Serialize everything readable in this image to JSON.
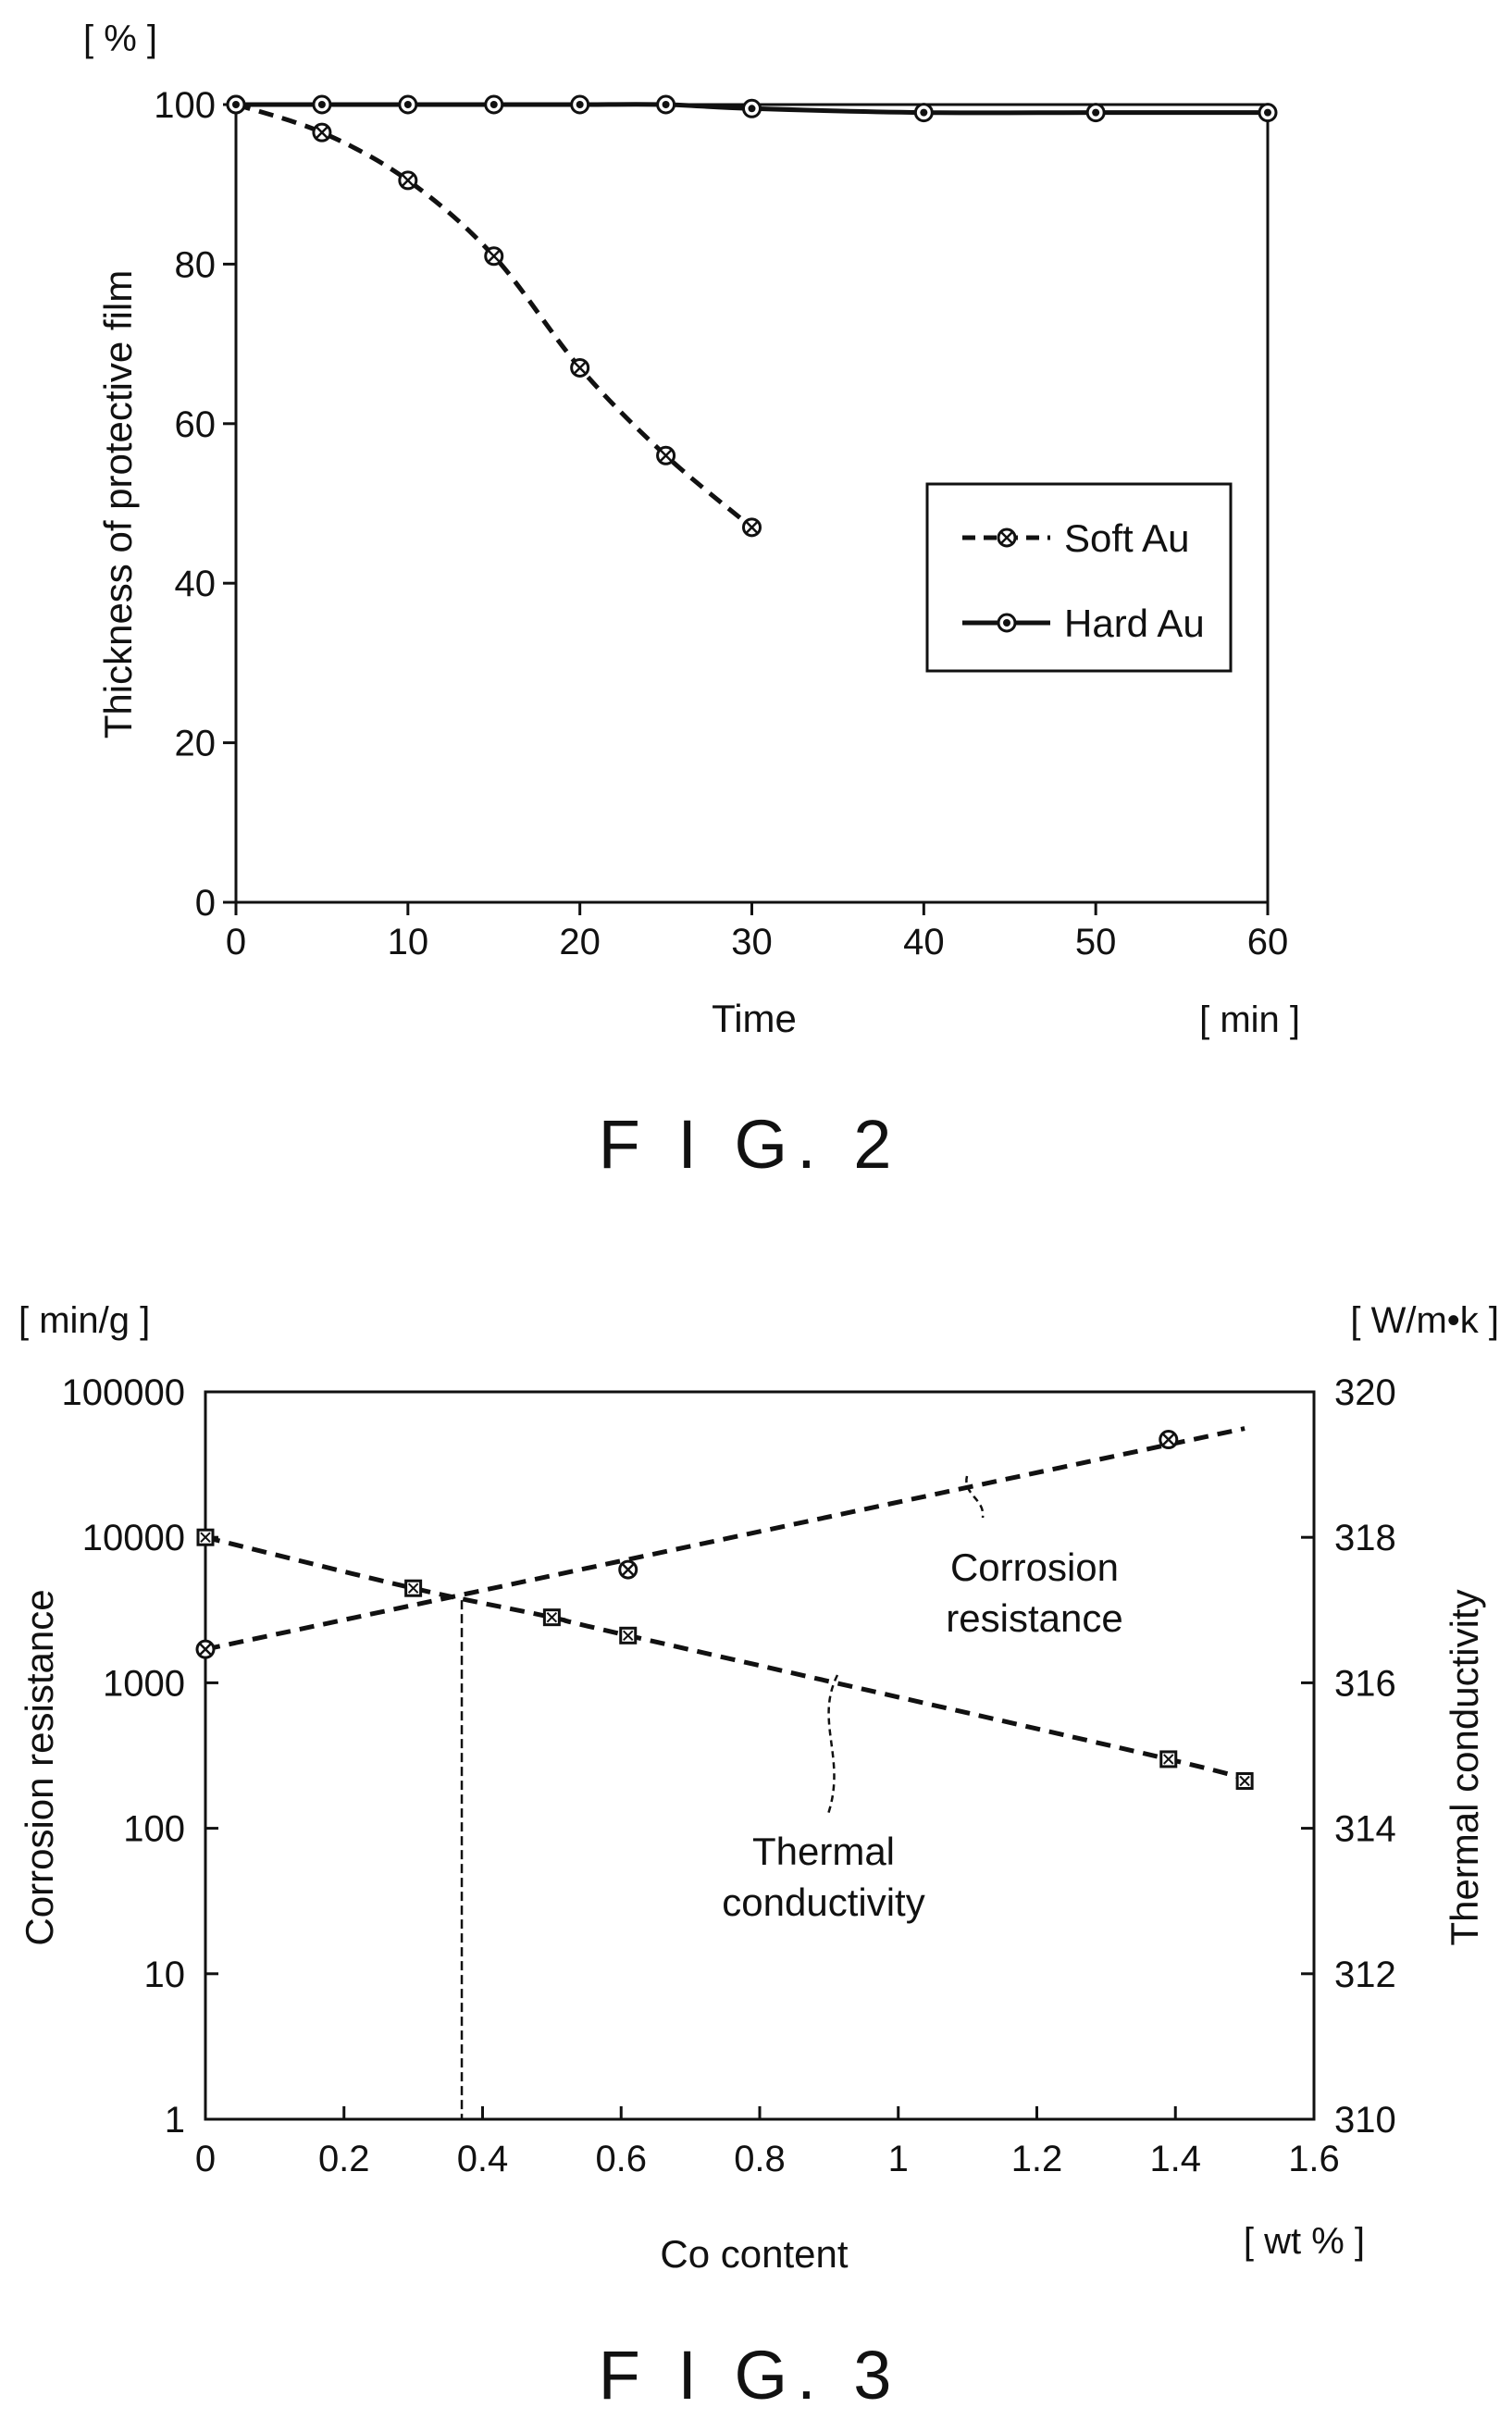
{
  "chart_data": [
    {
      "type": "line",
      "caption": "F I G. 2",
      "ylabel": "Thickness of protective film",
      "yunit": "[ % ]",
      "xlabel": "Time",
      "xunit": "[ min ]",
      "xlim": [
        0,
        60
      ],
      "ylim": [
        0,
        100
      ],
      "xticks": [
        0,
        10,
        20,
        30,
        40,
        50,
        60
      ],
      "yticks": [
        0,
        20,
        40,
        60,
        80,
        100
      ],
      "grid": false,
      "legend_position": "center-right",
      "series": [
        {
          "name": "Soft Au",
          "style": "dashed",
          "marker": "crossed-circle",
          "x": [
            0,
            5,
            10,
            15,
            20,
            25,
            30
          ],
          "y": [
            100,
            96.5,
            90.5,
            81,
            67,
            56,
            47
          ]
        },
        {
          "name": "Hard Au",
          "style": "solid",
          "marker": "dotted-circle",
          "x": [
            0,
            5,
            10,
            15,
            20,
            25,
            30,
            40,
            50,
            60
          ],
          "y": [
            100,
            100,
            100,
            100,
            100,
            100,
            99.5,
            99,
            99,
            99
          ]
        }
      ]
    },
    {
      "type": "line",
      "caption": "F I G. 3",
      "xlabel": "Co content",
      "xunit": "[ wt % ]",
      "xlim": [
        0,
        1.6
      ],
      "xticks": [
        "0",
        "0.2",
        "0.4",
        "0.6",
        "0.8",
        "1",
        "1.2",
        "1.4",
        "1.6"
      ],
      "ylabel_left": "Corrosion resistance",
      "yunit_left": "[ min/g ]",
      "yscale_left": "log",
      "ylim_left": [
        1,
        100000
      ],
      "yticks_left": [
        "1",
        "10",
        "100",
        "1000",
        "10000",
        "100000"
      ],
      "ylabel_right": "Thermal conductivity",
      "yunit_right": "[ W/m•k ]",
      "ylim_right": [
        310,
        320
      ],
      "yticks_right": [
        "310",
        "312",
        "314",
        "316",
        "318",
        "320"
      ],
      "grid": false,
      "intersection_x": 0.37,
      "series": [
        {
          "name": "Corrosion resistance",
          "axis": "left",
          "style": "dashed",
          "x": [
            0,
            0.61,
            1.39
          ],
          "y": [
            1700,
            6000,
            47000
          ],
          "line_x": [
            0,
            1.5
          ],
          "line_y": [
            1700,
            56000
          ]
        },
        {
          "name": "Thermal conductivity",
          "axis": "right",
          "style": "dashed",
          "x": [
            0,
            0.3,
            0.5,
            0.61,
            1.39,
            1.5
          ],
          "y": [
            318,
            317.3,
            316.9,
            316.65,
            314.95,
            314.65
          ]
        }
      ],
      "annotations": {
        "corrosion": [
          "Corrosion",
          "resistance"
        ],
        "thermal": [
          "Thermal",
          "conductivity"
        ]
      }
    }
  ]
}
